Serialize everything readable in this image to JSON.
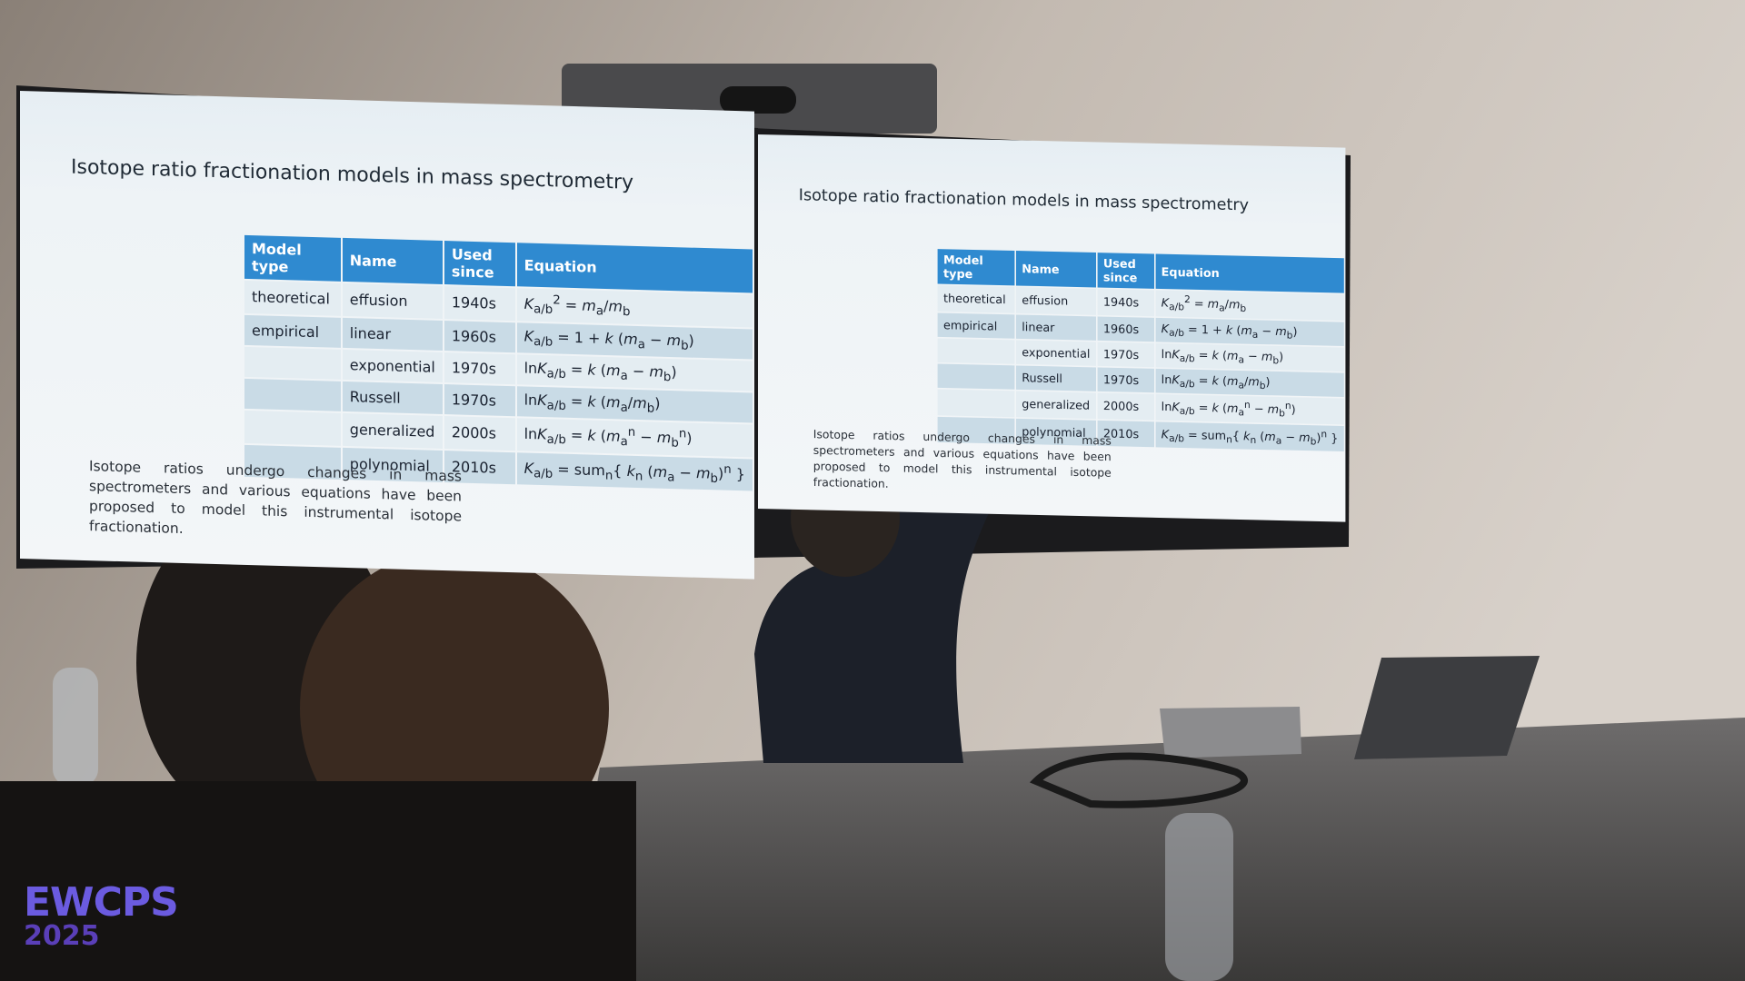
{
  "slide": {
    "title": "Isotope ratio fractionation models in mass spectrometry",
    "table": {
      "headers": [
        "Model type",
        "Name",
        "Used since",
        "Equation"
      ],
      "rows": [
        [
          "theoretical",
          "effusion",
          "1940s",
          [
            [
              "K",
              "i"
            ],
            [
              "a/b",
              "sub"
            ],
            [
              "2",
              "sup"
            ],
            [
              " = ",
              "n"
            ],
            [
              "m",
              "i"
            ],
            [
              "a",
              "sub"
            ],
            [
              "/",
              "n"
            ],
            [
              "m",
              "i"
            ],
            [
              "b",
              "sub"
            ]
          ]
        ],
        [
          "empirical",
          "linear",
          "1960s",
          [
            [
              "K",
              "i"
            ],
            [
              "a/b",
              "sub"
            ],
            [
              " = 1 + ",
              "n"
            ],
            [
              "k",
              "i"
            ],
            [
              " (",
              "n"
            ],
            [
              "m",
              "i"
            ],
            [
              "a",
              "sub"
            ],
            [
              " − ",
              "n"
            ],
            [
              "m",
              "i"
            ],
            [
              "b",
              "sub"
            ],
            [
              ")",
              "n"
            ]
          ]
        ],
        [
          null,
          "exponential",
          "1970s",
          [
            [
              "ln",
              "n"
            ],
            [
              "K",
              "i"
            ],
            [
              "a/b",
              "sub"
            ],
            [
              " = ",
              "n"
            ],
            [
              "k",
              "i"
            ],
            [
              " (",
              "n"
            ],
            [
              "m",
              "i"
            ],
            [
              "a",
              "sub"
            ],
            [
              " − ",
              "n"
            ],
            [
              "m",
              "i"
            ],
            [
              "b",
              "sub"
            ],
            [
              ")",
              "n"
            ]
          ]
        ],
        [
          null,
          "Russell",
          "1970s",
          [
            [
              "ln",
              "n"
            ],
            [
              "K",
              "i"
            ],
            [
              "a/b",
              "sub"
            ],
            [
              " = ",
              "n"
            ],
            [
              "k",
              "i"
            ],
            [
              " (",
              "n"
            ],
            [
              "m",
              "i"
            ],
            [
              "a",
              "sub"
            ],
            [
              "/",
              "n"
            ],
            [
              "m",
              "i"
            ],
            [
              "b",
              "sub"
            ],
            [
              ")",
              "n"
            ]
          ]
        ],
        [
          null,
          "generalized",
          "2000s",
          [
            [
              "ln",
              "n"
            ],
            [
              "K",
              "i"
            ],
            [
              "a/b",
              "sub"
            ],
            [
              " = ",
              "n"
            ],
            [
              "k",
              "i"
            ],
            [
              " (",
              "n"
            ],
            [
              "m",
              "i"
            ],
            [
              "a",
              "sub"
            ],
            [
              "n",
              "sup"
            ],
            [
              " − ",
              "n"
            ],
            [
              "m",
              "i"
            ],
            [
              "b",
              "sub"
            ],
            [
              "n",
              "sup"
            ],
            [
              ")",
              "n"
            ]
          ]
        ],
        [
          null,
          "polynomial",
          "2010s",
          [
            [
              "K",
              "i"
            ],
            [
              "a/b",
              "sub"
            ],
            [
              " = sum",
              "n"
            ],
            [
              "n",
              "sub"
            ],
            [
              "{ ",
              "n"
            ],
            [
              "k",
              "i"
            ],
            [
              "n",
              "sub"
            ],
            [
              " (",
              "n"
            ],
            [
              "m",
              "i"
            ],
            [
              "a",
              "sub"
            ],
            [
              " − ",
              "n"
            ],
            [
              "m",
              "i"
            ],
            [
              "b",
              "sub"
            ],
            [
              ")",
              "n"
            ],
            [
              "n",
              "sup"
            ],
            [
              " }",
              "n"
            ]
          ]
        ]
      ]
    },
    "paragraph": "Isotope ratios undergo changes in mass spectrometers and various equations have been proposed to model this instrumental isotope fractionation."
  },
  "logo": {
    "name": "EWCPS",
    "year": "2025"
  }
}
